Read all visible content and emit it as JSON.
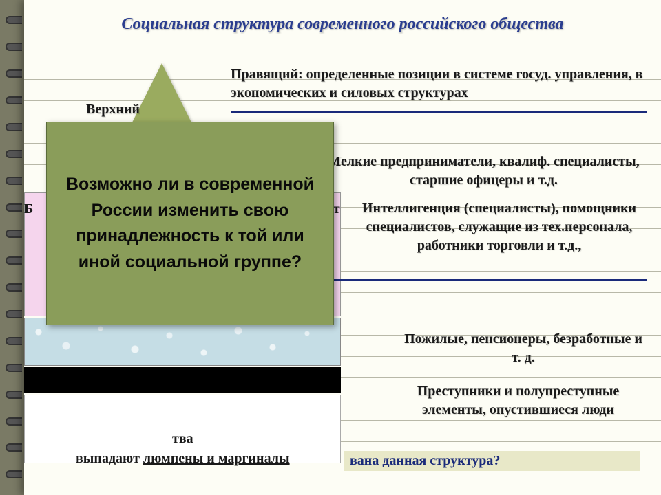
{
  "title": "Социальная структура современного российского общества",
  "labels": {
    "top": "Верхний",
    "leftFrag": "Б",
    "rightFrag": "ет"
  },
  "descriptions": {
    "d1": "Правящий: определенные позиции в системе госуд. управления, в экономических и силовых структурах",
    "d2": "Мелкие предприниматели, квалиф. специалисты, старшие офицеры и т.д.",
    "d3": "Интеллигенция (специалисты), помощники специалистов, служащие из тех.персонала, работники торговли и т.д.,",
    "d5": "Пожилые, пенсионеры, безработные и т. д.",
    "d6": "Преступники и полупреступные элементы, опустившиеся люди"
  },
  "overlay": "Возможно ли в современной России изменить свою принадлежность к той или иной социальной группе?",
  "bottom": {
    "frag1": "тва",
    "line2_pre": "выпадают ",
    "line2_underline": "люмпены и маргиналы",
    "question": "вана данная структура?"
  },
  "colors": {
    "title": "#2a3d8f",
    "overlayBg": "#8a9d5a",
    "triangle": "#9aab5f",
    "pink": "#f5d5ed",
    "water": "#c5dde5",
    "paper": "#fdfdf5"
  }
}
